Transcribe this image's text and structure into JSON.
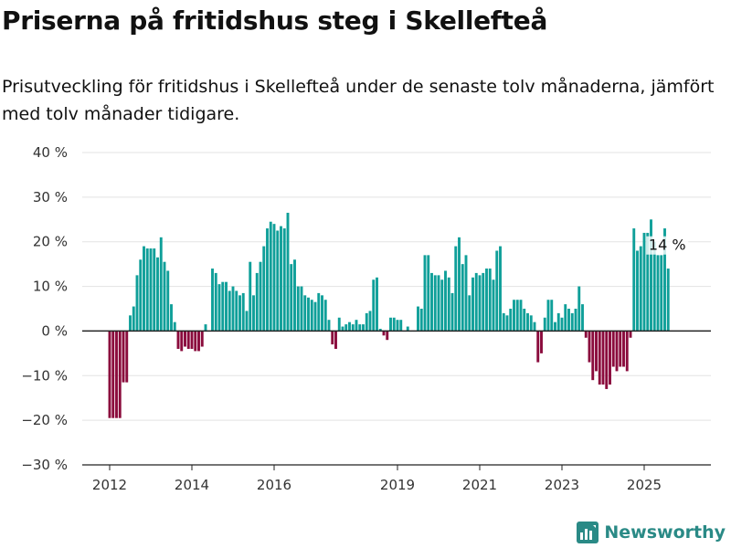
{
  "title": "Priserna på fritidshus steg i Skellefteå",
  "subtitle": "Prisutveckling för fritidshus i Skellefteå under de senaste tolv månaderna, jämfört med tolv månader tidigare.",
  "brand": "Newsworthy",
  "colors": {
    "positive": "#0f9f99",
    "negative": "#8a0b3c",
    "brand": "#2a8a86"
  },
  "chart_data": {
    "type": "bar",
    "ylim": [
      -30,
      40
    ],
    "yticks": [
      -30,
      -20,
      -10,
      0,
      10,
      20,
      30,
      40
    ],
    "ytick_labels": [
      "−30 %",
      "−20 %",
      "−10 %",
      "0 %",
      "10 %",
      "20 %",
      "30 %",
      "40 %"
    ],
    "xticks": [
      2012,
      2014,
      2016,
      2019,
      2021,
      2023,
      2025
    ],
    "xtick_labels": [
      "2012",
      "2014",
      "2016",
      "2019",
      "2021",
      "2023",
      "2025"
    ],
    "x_start": 2012,
    "annotation": {
      "text": "14 %",
      "value": 14
    },
    "grid": true,
    "values": [
      -19.5,
      -19.5,
      -19.5,
      -19.5,
      -11.5,
      -11.5,
      3.5,
      5.5,
      12.5,
      16,
      19,
      18.5,
      18.5,
      18.5,
      16.5,
      21,
      15.5,
      13.5,
      6,
      2,
      -4,
      -4.5,
      -3.5,
      -4,
      -4,
      -4.5,
      -4.5,
      -3.5,
      1.5,
      0,
      14,
      13,
      10.5,
      11,
      11,
      9,
      10,
      9,
      8,
      8.5,
      4.5,
      15.5,
      8,
      13,
      15.5,
      19,
      23,
      24.5,
      24,
      22.5,
      23.5,
      23,
      26.5,
      15,
      16,
      10,
      10,
      8,
      7.5,
      7,
      6.5,
      8.5,
      8,
      7,
      2.5,
      -3,
      -4,
      3,
      1,
      1.5,
      2,
      1.5,
      2.5,
      1.5,
      1.5,
      4,
      4.5,
      11.5,
      12,
      0.5,
      -1,
      -2,
      3,
      3,
      2.5,
      2.5,
      0,
      1,
      0,
      0,
      5.5,
      5,
      17,
      17,
      13,
      12.5,
      12.5,
      11.5,
      13.5,
      12,
      8.5,
      19,
      21,
      15,
      17,
      8,
      12,
      13,
      12.5,
      13,
      14,
      14,
      11.5,
      18,
      19,
      4,
      3.5,
      5,
      7,
      7,
      7,
      5,
      4,
      3.5,
      2,
      -7,
      -5,
      3,
      7,
      7,
      2,
      4,
      3,
      6,
      5,
      4,
      5,
      10,
      6,
      -1.5,
      -7,
      -11,
      -9,
      -12,
      -12,
      -13,
      -12,
      -8,
      -9,
      -8,
      -8,
      -9,
      -1.5,
      23,
      18,
      19,
      22,
      22,
      25,
      20,
      17,
      17,
      23,
      14
    ]
  }
}
